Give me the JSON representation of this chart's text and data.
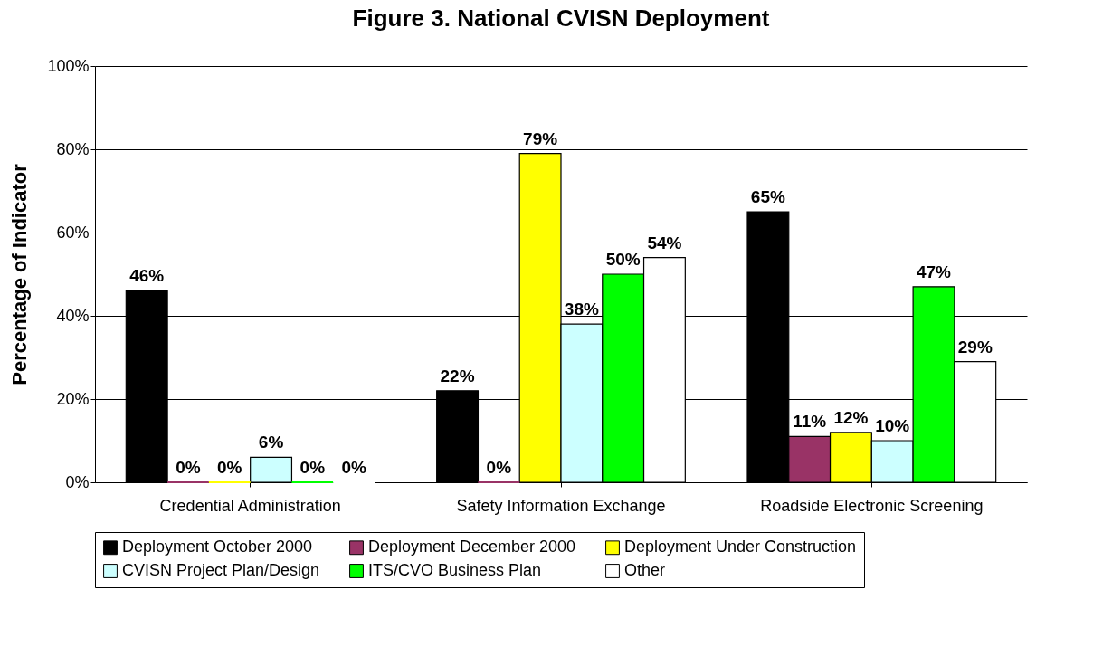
{
  "chart_data": {
    "type": "bar",
    "title": "Figure 3. National CVISN Deployment",
    "ylabel": "Percentage of Indicator",
    "categories": [
      "Credential Administration",
      "Safety Information Exchange",
      "Roadside Electronic Screening"
    ],
    "series": [
      {
        "name": "Deployment October 2000",
        "color": "#000000",
        "values": [
          46,
          22,
          65
        ],
        "value_labels": [
          "46%",
          "22%",
          "65%"
        ]
      },
      {
        "name": "Deployment December 2000",
        "color": "#993366",
        "values": [
          0,
          0,
          11
        ],
        "value_labels": [
          "0%",
          "0%",
          "11%"
        ]
      },
      {
        "name": "Deployment Under Construction",
        "color": "#ffff00",
        "values": [
          0,
          79,
          12
        ],
        "value_labels": [
          "0%",
          "79%",
          "12%"
        ]
      },
      {
        "name": "CVISN Project Plan/Design",
        "color": "#ccffff",
        "values": [
          6,
          38,
          10
        ],
        "value_labels": [
          "6%",
          "38%",
          "10%"
        ]
      },
      {
        "name": "ITS/CVO Business Plan",
        "color": "#00ff00",
        "values": [
          0,
          50,
          47
        ],
        "value_labels": [
          "0%",
          "50%",
          "47%"
        ]
      },
      {
        "name": "Other",
        "color": "#ffffff",
        "values": [
          0,
          54,
          29
        ],
        "value_labels": [
          "0%",
          "54%",
          "29%"
        ]
      }
    ],
    "ylim": [
      0,
      100
    ],
    "yticks": [
      {
        "value": 0,
        "label": "0%"
      },
      {
        "value": 20,
        "label": "20%"
      },
      {
        "value": 40,
        "label": "40%"
      },
      {
        "value": 60,
        "label": "60%"
      },
      {
        "value": 80,
        "label": "80%"
      },
      {
        "value": 100,
        "label": "100%"
      }
    ],
    "grid": "y",
    "legend": "bottom"
  }
}
